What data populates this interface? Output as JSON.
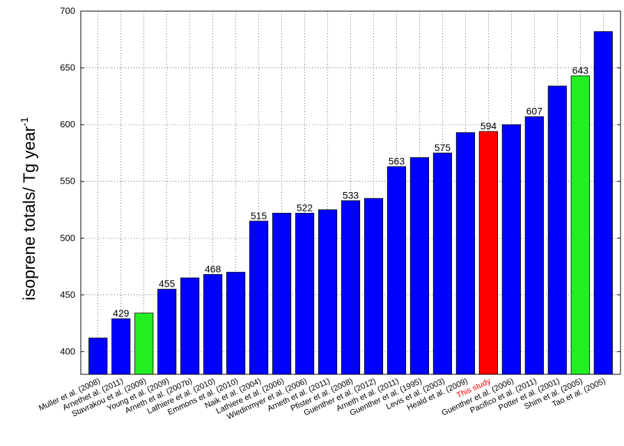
{
  "chart_data": {
    "type": "bar",
    "ylabel": "isoprene totals/ Tg year",
    "ylabel_superscript": "-1",
    "ylim": [
      380,
      700
    ],
    "yticks": [
      400,
      450,
      500,
      550,
      600,
      650,
      700
    ],
    "grid": true,
    "categories": [
      "Muller et al. (2008)",
      "Arnethet al. (2011)",
      "Stavrakou et al. (2009)",
      "Young et al. (2009)",
      "Arneth et al. (2007b)",
      "Lathiere et al. (2010)",
      "Emmons et al. (2010)",
      "Naik et al. (2004)",
      "Lathiere et al. (2006)",
      "Wiedinmyer et al. (2006)",
      "Arneth et al. (2011)",
      "Pfister et al. (2008)",
      "Guenther et al. (2012)",
      "Arneth et al. (2011)",
      "Guenther et al. (1995)",
      "Levis et al. (2003)",
      "Heald et al. (2009)",
      "This study",
      "Guenther et al. (2006)",
      "Pacifico et al. (2011)",
      "Potter et al. (2001)",
      "Shim et al. (2005)",
      "Tao et al. (2005)"
    ],
    "values": [
      412,
      429,
      434,
      455,
      465,
      468,
      470,
      515,
      522,
      522,
      525,
      533,
      535,
      563,
      571,
      575,
      593,
      594,
      600,
      607,
      634,
      643,
      682
    ],
    "data_labels": [
      "",
      "429",
      "",
      "455",
      "",
      "468",
      "",
      "515",
      "",
      "522",
      "",
      "533",
      "",
      "563",
      "",
      "575",
      "",
      "594",
      "",
      "607",
      "",
      "643",
      ""
    ],
    "bar_colors": [
      "#0000ff",
      "#0000ff",
      "#22ee22",
      "#0000ff",
      "#0000ff",
      "#0000ff",
      "#0000ff",
      "#0000ff",
      "#0000ff",
      "#0000ff",
      "#0000ff",
      "#0000ff",
      "#0000ff",
      "#0000ff",
      "#0000ff",
      "#0000ff",
      "#0000ff",
      "#ff0000",
      "#0000ff",
      "#0000ff",
      "#0000ff",
      "#22ee22",
      "#0000ff"
    ],
    "label_colors": [
      "#000000",
      "#000000",
      "#000000",
      "#000000",
      "#000000",
      "#000000",
      "#000000",
      "#000000",
      "#000000",
      "#000000",
      "#000000",
      "#000000",
      "#000000",
      "#000000",
      "#000000",
      "#000000",
      "#000000",
      "#ff0000",
      "#000000",
      "#000000",
      "#000000",
      "#000000",
      "#000000"
    ]
  }
}
